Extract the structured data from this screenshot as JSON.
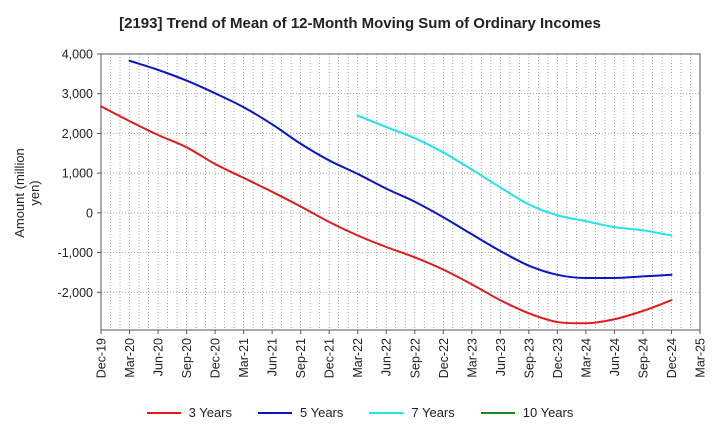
{
  "chart_data": {
    "type": "line",
    "title": "[2193]  Trend of Mean of 12-Month Moving Sum of Ordinary Incomes",
    "xlabel": "",
    "ylabel": "Amount (million yen)",
    "ylim": [
      -2950,
      4000
    ],
    "yticks": [
      4000,
      3000,
      2000,
      1000,
      0,
      -1000,
      -2000
    ],
    "ytick_labels": [
      "4,000",
      "3,000",
      "2,000",
      "1,000",
      "0",
      "-1,000",
      "-2,000"
    ],
    "x_start": "2019-12",
    "x_end": "2025-03",
    "xtick_labels": [
      "Dec-19",
      "Mar-20",
      "Jun-20",
      "Sep-20",
      "Dec-20",
      "Mar-21",
      "Jun-21",
      "Sep-21",
      "Dec-21",
      "Mar-22",
      "Jun-22",
      "Sep-22",
      "Dec-22",
      "Mar-23",
      "Jun-23",
      "Sep-23",
      "Dec-23",
      "Mar-24",
      "Jun-24",
      "Sep-24",
      "Dec-24",
      "Mar-25"
    ],
    "grid": true,
    "legend_position": "bottom",
    "series": [
      {
        "name": "3 Years",
        "color": "#e31a1c",
        "points": [
          [
            "Dec-19",
            2680
          ],
          [
            "Mar-20",
            2310
          ],
          [
            "Jun-20",
            1960
          ],
          [
            "Sep-20",
            1650
          ],
          [
            "Dec-20",
            1230
          ],
          [
            "Mar-21",
            880
          ],
          [
            "Jun-21",
            530
          ],
          [
            "Sep-21",
            160
          ],
          [
            "Dec-21",
            -230
          ],
          [
            "Mar-22",
            -570
          ],
          [
            "Jun-22",
            -860
          ],
          [
            "Sep-22",
            -1120
          ],
          [
            "Dec-22",
            -1430
          ],
          [
            "Mar-23",
            -1800
          ],
          [
            "Jun-23",
            -2200
          ],
          [
            "Sep-23",
            -2530
          ],
          [
            "Dec-23",
            -2750
          ],
          [
            "Mar-24",
            -2780
          ],
          [
            "Jun-24",
            -2680
          ],
          [
            "Sep-24",
            -2470
          ],
          [
            "Dec-24",
            -2200
          ]
        ]
      },
      {
        "name": "5 Years",
        "color": "#0a16c2",
        "points": [
          [
            "Mar-20",
            3830
          ],
          [
            "Jun-20",
            3600
          ],
          [
            "Sep-20",
            3330
          ],
          [
            "Dec-20",
            3010
          ],
          [
            "Mar-21",
            2660
          ],
          [
            "Jun-21",
            2230
          ],
          [
            "Sep-21",
            1740
          ],
          [
            "Dec-21",
            1320
          ],
          [
            "Mar-22",
            980
          ],
          [
            "Jun-22",
            610
          ],
          [
            "Sep-22",
            280
          ],
          [
            "Dec-22",
            -110
          ],
          [
            "Mar-23",
            -540
          ],
          [
            "Jun-23",
            -960
          ],
          [
            "Sep-23",
            -1330
          ],
          [
            "Dec-23",
            -1560
          ],
          [
            "Mar-24",
            -1640
          ],
          [
            "Jun-24",
            -1640
          ],
          [
            "Sep-24",
            -1600
          ],
          [
            "Dec-24",
            -1560
          ]
        ]
      },
      {
        "name": "7 Years",
        "color": "#21e4ea",
        "points": [
          [
            "Mar-22",
            2450
          ],
          [
            "Jun-22",
            2160
          ],
          [
            "Sep-22",
            1880
          ],
          [
            "Dec-22",
            1520
          ],
          [
            "Mar-23",
            1090
          ],
          [
            "Jun-23",
            640
          ],
          [
            "Sep-23",
            210
          ],
          [
            "Dec-23",
            -60
          ],
          [
            "Mar-24",
            -210
          ],
          [
            "Jun-24",
            -360
          ],
          [
            "Sep-24",
            -440
          ],
          [
            "Dec-24",
            -570
          ]
        ]
      },
      {
        "name": "10 Years",
        "color": "#1a8a1a",
        "points": []
      }
    ]
  }
}
